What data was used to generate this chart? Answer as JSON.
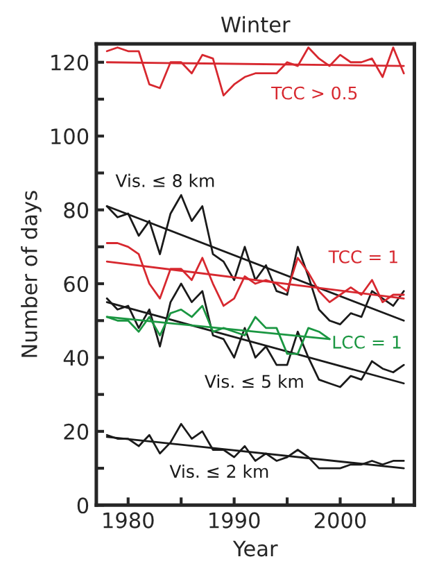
{
  "chart_data": {
    "type": "line",
    "title": "Winter",
    "xlabel": "Year",
    "ylabel": "Number of days",
    "x": [
      1978,
      1979,
      1980,
      1981,
      1982,
      1983,
      1984,
      1985,
      1986,
      1987,
      1988,
      1989,
      1990,
      1991,
      1992,
      1993,
      1994,
      1995,
      1996,
      1997,
      1998,
      1999,
      2000,
      2001,
      2002,
      2003,
      2004,
      2005,
      2006
    ],
    "series": [
      {
        "name": "TCC > 0.5",
        "color": "#d7282f",
        "values": [
          123,
          124,
          123,
          123,
          114,
          113,
          120,
          120,
          117,
          122,
          121,
          111,
          114,
          116,
          117,
          117,
          117,
          120,
          119,
          124,
          121,
          119,
          122,
          120,
          120,
          121,
          116,
          124,
          117
        ]
      },
      {
        "color": "#d7282f",
        "x": [
          1978,
          2006
        ],
        "values": [
          120,
          119
        ]
      },
      {
        "name": "Vis. ≤ 8 km",
        "color": "#1a1a1a",
        "values": [
          81,
          78,
          79,
          73,
          77,
          68,
          79,
          84,
          77,
          81,
          68,
          66,
          61,
          70,
          61,
          65,
          58,
          57,
          70,
          62,
          53,
          50,
          49,
          52,
          51,
          58,
          56,
          54,
          58
        ]
      },
      {
        "color": "#1a1a1a",
        "x": [
          1978,
          2006
        ],
        "values": [
          81,
          50
        ]
      },
      {
        "name": "TCC = 1",
        "color": "#d7282f",
        "values": [
          71,
          71,
          70,
          68,
          60,
          56,
          64,
          64,
          61,
          67,
          60,
          54,
          56,
          62,
          60,
          61,
          60,
          58,
          67,
          63,
          58,
          55,
          57,
          59,
          57,
          61,
          55,
          57,
          57
        ]
      },
      {
        "color": "#d7282f",
        "x": [
          1978,
          2006
        ],
        "values": [
          66,
          56
        ]
      },
      {
        "name": "Vis. ≤ 5 km",
        "color": "#1a1a1a",
        "values": [
          56,
          53,
          54,
          48,
          53,
          43,
          55,
          60,
          55,
          58,
          46,
          45,
          40,
          48,
          40,
          43,
          38,
          38,
          47,
          40,
          34,
          33,
          32,
          35,
          34,
          39,
          37,
          36,
          38
        ]
      },
      {
        "color": "#1a1a1a",
        "x": [
          1978,
          2006
        ],
        "values": [
          55,
          33
        ]
      },
      {
        "name": "LCC = 1",
        "color": "#1a9641",
        "x": [
          1978,
          1979,
          1980,
          1981,
          1982,
          1983,
          1984,
          1985,
          1986,
          1987,
          1988,
          1989,
          1990,
          1991,
          1992,
          1993,
          1994,
          1995,
          1996,
          1997,
          1998,
          1999
        ],
        "values": [
          51,
          50,
          50,
          47,
          51,
          46,
          52,
          53,
          51,
          54,
          47,
          48,
          47,
          46,
          51,
          48,
          48,
          41,
          41,
          48,
          47,
          45
        ]
      },
      {
        "color": "#1a9641",
        "x": [
          1978,
          1999
        ],
        "values": [
          51,
          45
        ]
      },
      {
        "name": "Vis. ≤ 2 km",
        "color": "#1a1a1a",
        "values": [
          19,
          18,
          18,
          16,
          19,
          14,
          17,
          22,
          18,
          20,
          15,
          15,
          13,
          16,
          12,
          14,
          12,
          13,
          15,
          13,
          10,
          10,
          10,
          11,
          11,
          12,
          11,
          12,
          12
        ]
      },
      {
        "color": "#1a1a1a",
        "x": [
          1978,
          2006
        ],
        "values": [
          18.5,
          10
        ]
      }
    ],
    "xlim": [
      1977,
      2007
    ],
    "ylim": [
      0,
      125
    ],
    "xticks": [
      1980,
      {
        "value": 1985,
        "label": null
      },
      1990,
      {
        "value": 1995,
        "label": null
      },
      2000,
      {
        "value": 2005,
        "label": null
      }
    ],
    "yticks": [
      0,
      {
        "value": 10,
        "label": null
      },
      20,
      {
        "value": 30,
        "label": null
      },
      40,
      {
        "value": 50,
        "label": null
      },
      60,
      {
        "value": 70,
        "label": null
      },
      80,
      {
        "value": 90,
        "label": null
      },
      100,
      {
        "value": 110,
        "label": null
      },
      120
    ],
    "grid": false,
    "legend": false,
    "marker": "none",
    "line_style": "solid"
  }
}
